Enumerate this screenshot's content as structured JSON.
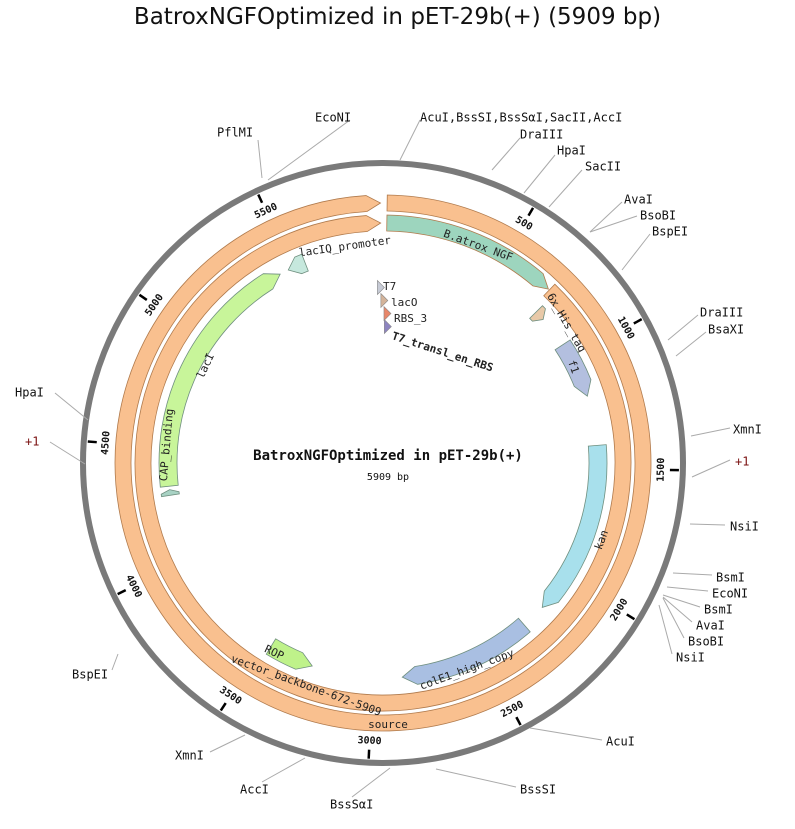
{
  "title": "BatroxNGFOptimized in pET-29b(+) (5909 bp)",
  "center": {
    "name": "BatroxNGFOptimized in pET-29b(+)",
    "length_label": "5909 bp"
  },
  "plasmid_length": 5909,
  "ticks": [
    "500",
    "1000",
    "1500",
    "2000",
    "2500",
    "3000",
    "3500",
    "4000",
    "4500",
    "5000",
    "5500"
  ],
  "features": [
    {
      "name": "source",
      "start": 15,
      "end": 5900,
      "dir": 1,
      "ring": "outer",
      "color": "#f9c08f"
    },
    {
      "name": "vector_backbone-672-5909",
      "start": 720,
      "end": 5900,
      "dir": 1,
      "ring": "middle",
      "color": "#f9c08f"
    },
    {
      "name": "B.atrox NGF",
      "start": 15,
      "end": 715,
      "dir": 1,
      "ring": "middle",
      "color": "#9dd5be"
    },
    {
      "name": "6x_His_tag",
      "start": 745,
      "end": 790,
      "dir": 1,
      "ring": "inner",
      "color": "#e8c9a8"
    },
    {
      "name": "f1",
      "start": 930,
      "end": 1180,
      "dir": 1,
      "ring": "inner",
      "color": "#b3bfdf"
    },
    {
      "name": "kan",
      "start": 1400,
      "end": 2170,
      "dir": 1,
      "ring": "inner",
      "color": "#a8e0ec"
    },
    {
      "name": "colE1_high_copy",
      "start": 2280,
      "end": 2870,
      "dir": 1,
      "ring": "inner",
      "color": "#a9bfe2"
    },
    {
      "name": "ROP",
      "start": 3270,
      "end": 3470,
      "dir": -1,
      "ring": "inner",
      "color": "#bff28a"
    },
    {
      "name": "lacI",
      "start": 4330,
      "end": 5440,
      "dir": 1,
      "ring": "inner",
      "color": "#c8f59a"
    },
    {
      "name": "CAP_binding",
      "start": 4290,
      "end": 4315,
      "dir": 1,
      "ring": "inner",
      "color": "#a8d2c4"
    },
    {
      "name": "lacIQ_promoter",
      "start": 5480,
      "end": 5560,
      "dir": -1,
      "ring": "inner",
      "color": "#c6e8dd"
    },
    {
      "name": "T7",
      "start": 5895,
      "end": 5905,
      "dir": 1,
      "ring": "small1",
      "color": "#c7cbd6"
    },
    {
      "name": "lacO",
      "start": 5,
      "end": 15,
      "dir": 1,
      "ring": "small2",
      "color": "#d4b49a"
    },
    {
      "name": "RBS_3",
      "start": 25,
      "end": 35,
      "dir": 1,
      "ring": "small3",
      "color": "#e8876a"
    },
    {
      "name": "T7_transl_en_RBS",
      "start": 30,
      "end": 40,
      "dir": 1,
      "ring": "small4",
      "color": "#8d84c0"
    }
  ],
  "sites": [
    "PflMI",
    "EcoNI",
    "AcuI,BssSI,BssSαI,SacII,AccI",
    "DraIII",
    "HpaI",
    "SacII",
    "AvaI",
    "BsoBI",
    "BspEI",
    "DraIII",
    "BsaXI",
    "XmnI",
    "+1",
    "NsiI",
    "BsmI",
    "EcoNI",
    "BsmI",
    "AvaI",
    "BsoBI",
    "NsiI",
    "AcuI",
    "BssSI",
    "BssSαI",
    "AccI",
    "XmnI",
    "BspEI",
    "HpaI",
    "+1"
  ],
  "colors": {
    "backbone": "#7a7a7a",
    "feature_stroke": "#b07a4c",
    "plus_one": "#7a1010"
  }
}
